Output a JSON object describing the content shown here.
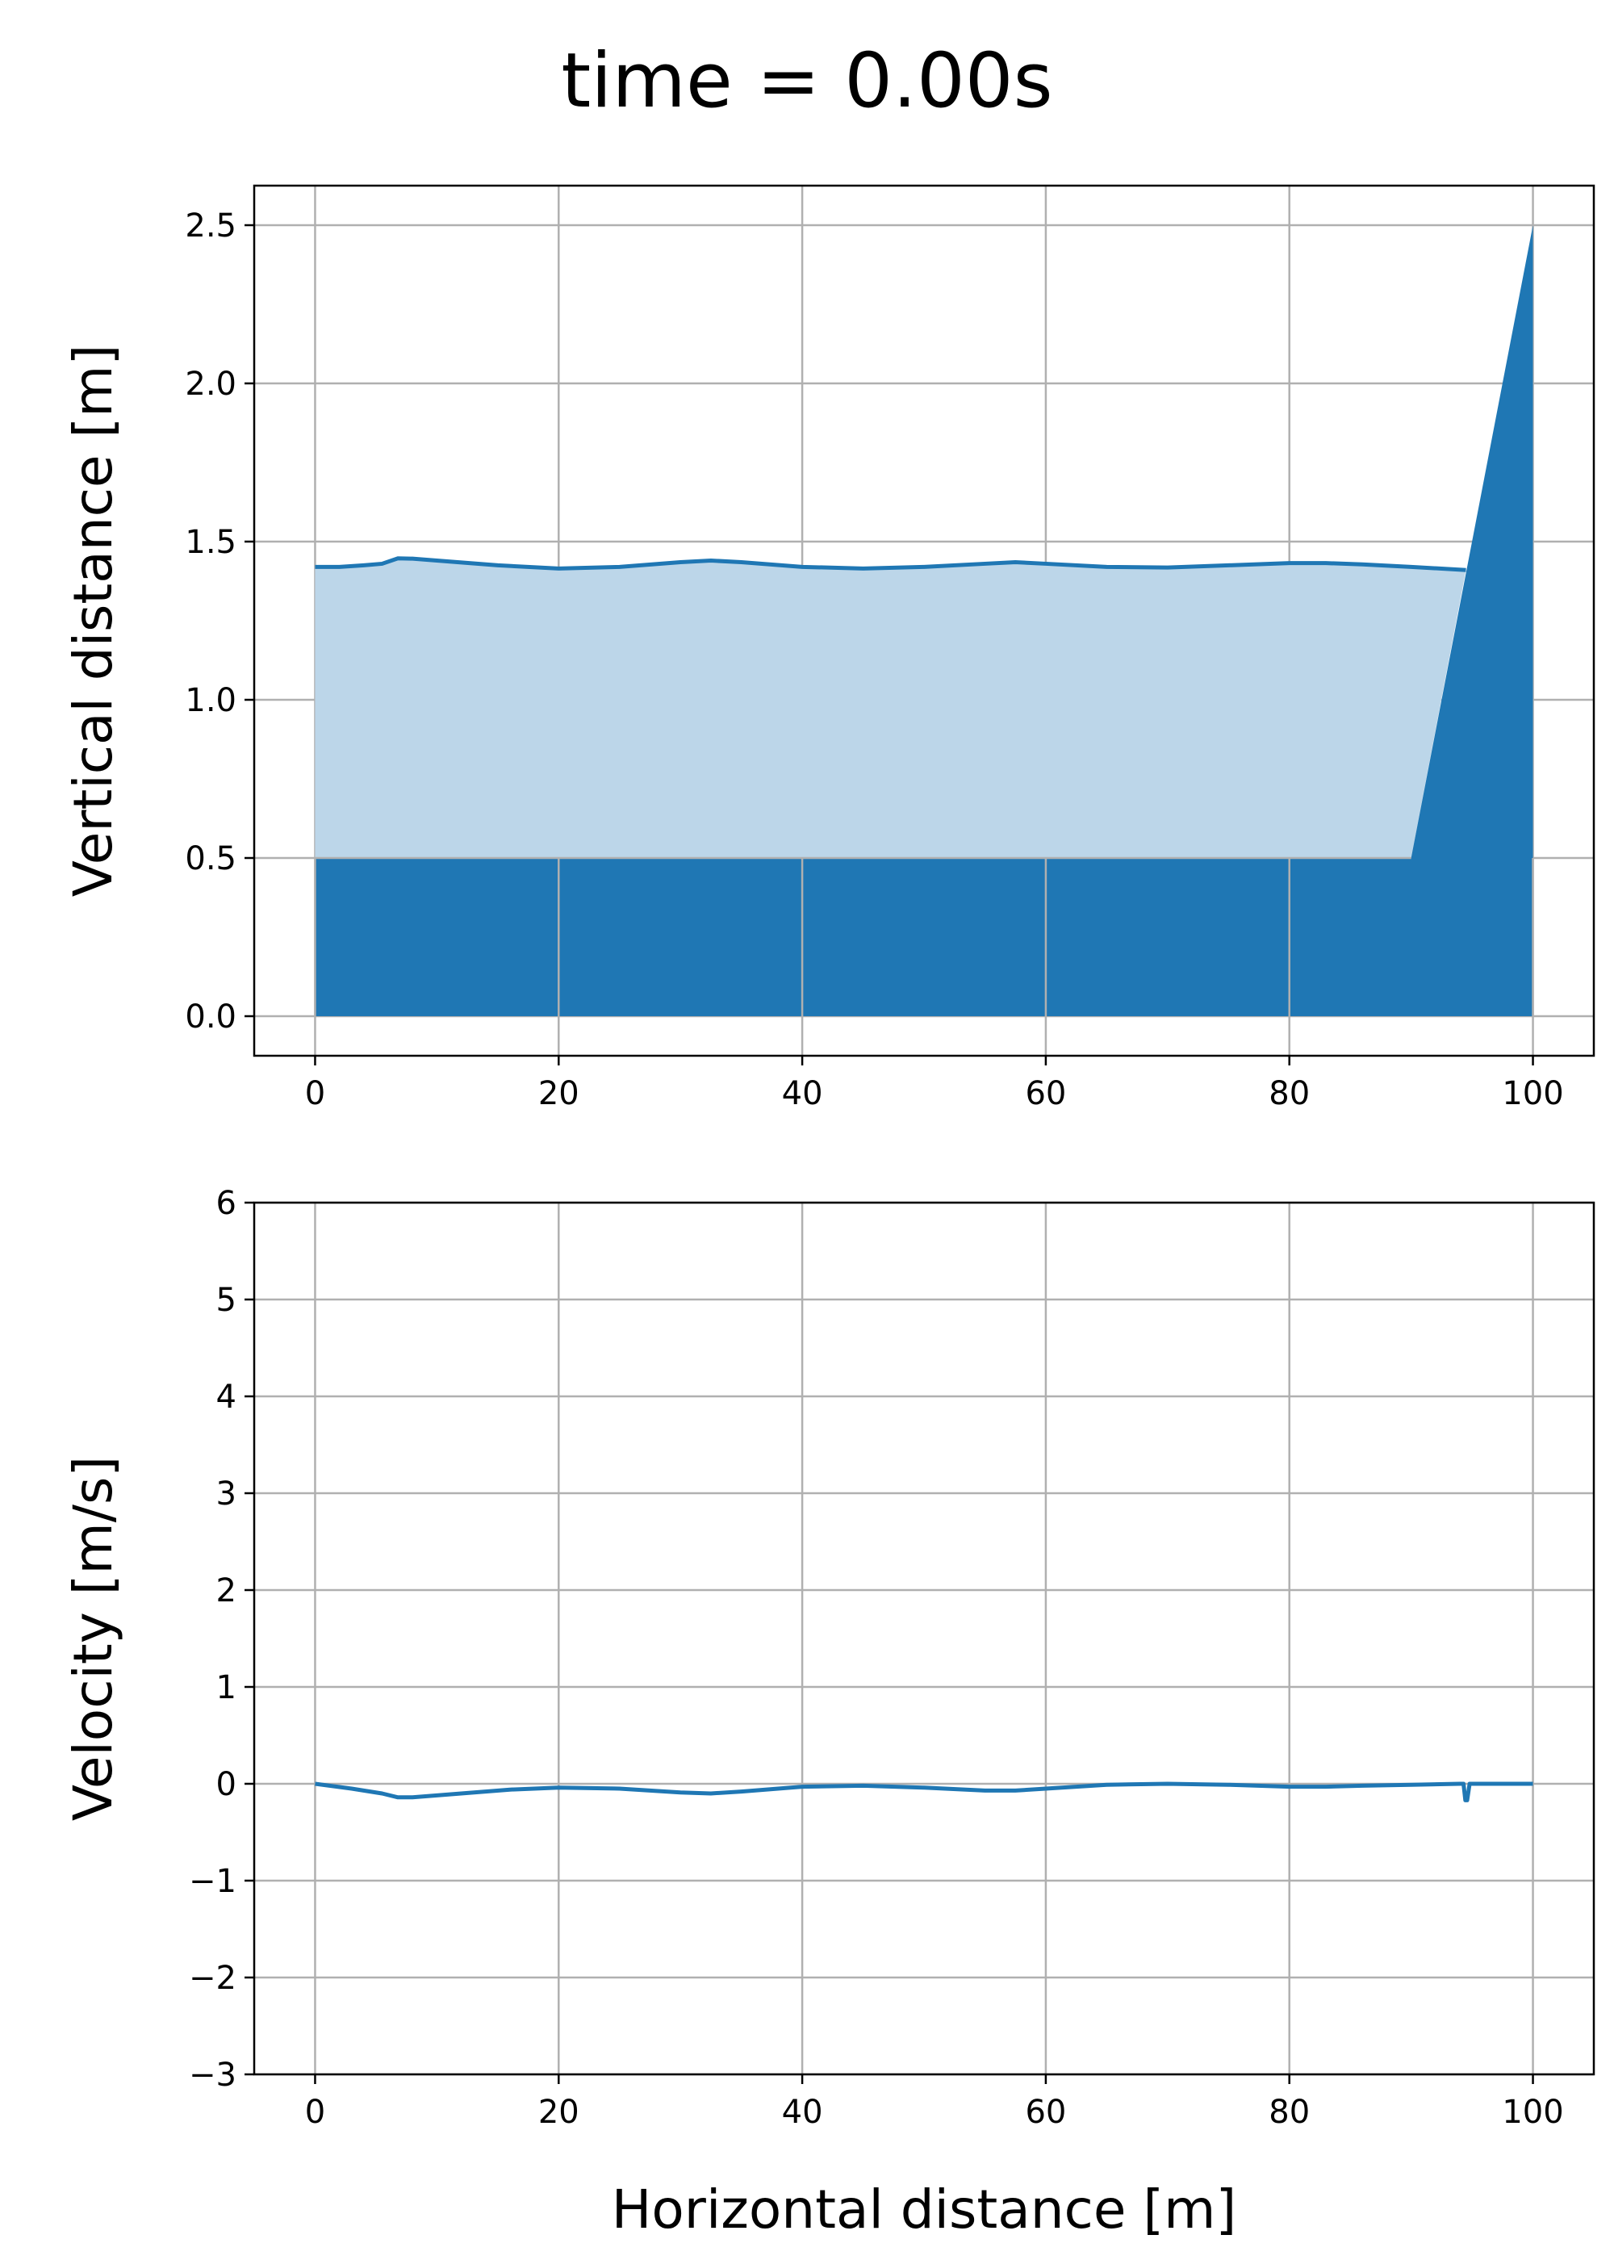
{
  "title": "time = 0.00s",
  "colors": {
    "water_line": "#1f77b4",
    "water_fill": "#bcd6e9",
    "ground_fill": "#1f77b4",
    "grid": "#b0b0b0"
  },
  "chart_data": [
    {
      "type": "area",
      "ylabel": "Vertical distance [m]",
      "xlabel": "",
      "xlim": [
        -5,
        105
      ],
      "ylim": [
        -0.125,
        2.625
      ],
      "xticks": [
        "0",
        "20",
        "40",
        "60",
        "80",
        "100"
      ],
      "yticks": [
        "0.0",
        "0.5",
        "1.0",
        "1.5",
        "2.0",
        "2.5"
      ],
      "grid": true,
      "series": [
        {
          "role": "water_surface",
          "x": [
            0,
            2,
            4,
            5.5,
            6.8,
            8,
            10,
            15,
            20,
            25,
            30,
            32.5,
            35,
            40,
            45,
            50,
            55,
            57.5,
            60,
            65,
            70,
            75,
            80,
            83,
            86,
            90,
            94.5
          ],
          "y": [
            1.42,
            1.42,
            1.425,
            1.43,
            1.447,
            1.446,
            1.44,
            1.425,
            1.415,
            1.42,
            1.435,
            1.44,
            1.435,
            1.42,
            1.415,
            1.42,
            1.43,
            1.435,
            1.43,
            1.42,
            1.418,
            1.425,
            1.432,
            1.432,
            1.428,
            1.42,
            1.41
          ]
        },
        {
          "role": "ground",
          "x": [
            0,
            90,
            100,
            100,
            0
          ],
          "y": [
            0.5,
            0.5,
            2.5,
            0,
            0
          ]
        }
      ]
    },
    {
      "type": "line",
      "ylabel": "Velocity [m/s]",
      "xlabel": "Horizontal distance [m]",
      "xlim": [
        -5,
        105
      ],
      "ylim": [
        -3,
        6
      ],
      "xticks": [
        "0",
        "20",
        "40",
        "60",
        "80",
        "100"
      ],
      "yticks": [
        "−3",
        "−2",
        "−1",
        "0",
        "1",
        "2",
        "3",
        "4",
        "5",
        "6"
      ],
      "grid": true,
      "series": [
        {
          "role": "velocity",
          "x": [
            0,
            3,
            5.5,
            6.8,
            8,
            12,
            16,
            20,
            25,
            30,
            32.5,
            35,
            40,
            45,
            50,
            55,
            57.5,
            60,
            65,
            70,
            75,
            80,
            83,
            86,
            90,
            94,
            94.3,
            94.45,
            94.6,
            94.8,
            95,
            100
          ],
          "y": [
            0,
            -0.05,
            -0.1,
            -0.14,
            -0.14,
            -0.1,
            -0.06,
            -0.04,
            -0.05,
            -0.09,
            -0.1,
            -0.08,
            -0.03,
            -0.02,
            -0.04,
            -0.07,
            -0.07,
            -0.05,
            -0.01,
            0,
            -0.01,
            -0.03,
            -0.03,
            -0.02,
            -0.01,
            0,
            0,
            -0.17,
            -0.17,
            0,
            0,
            0
          ]
        }
      ]
    }
  ]
}
